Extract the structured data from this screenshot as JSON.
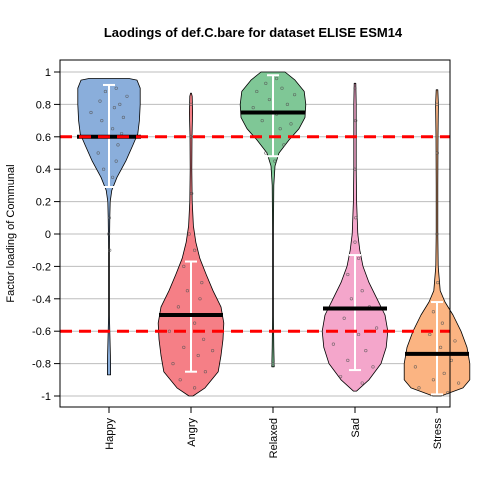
{
  "chart_data": {
    "type": "violin",
    "title": "Laodings of def.C.bare for dataset ELISE ESM14",
    "xlabel": "",
    "ylabel": "Factor loading of Communal",
    "ylim": [
      -1,
      1
    ],
    "yticks": [
      1,
      0.8,
      0.6,
      0.4,
      0.2,
      0,
      -0.2,
      -0.4,
      -0.6,
      -0.8,
      -1
    ],
    "ytick_labels": [
      "1",
      "0.8",
      "0.6",
      "0.4",
      "0.2",
      "0",
      "-0.2",
      "-0.4",
      "-0.6",
      "-0.8",
      "-1"
    ],
    "grid": true,
    "reference_lines": [
      0.6,
      -0.6
    ],
    "reference_color": "#ff0000",
    "categories": [
      "Happy",
      "Angry",
      "Relaxed",
      "Sad",
      "Stress"
    ],
    "series": [
      {
        "category": "Happy",
        "color": "#8aaedb",
        "mean": 0.6,
        "interval": [
          0.29,
          0.92
        ],
        "range": [
          -0.87,
          0.96
        ],
        "density": [
          [
            -0.87,
            0.04
          ],
          [
            -0.8,
            0.04
          ],
          [
            -0.7,
            0.03
          ],
          [
            -0.5,
            0.01
          ],
          [
            -0.1,
            0.01
          ],
          [
            0.1,
            0.02
          ],
          [
            0.2,
            0.03
          ],
          [
            0.27,
            0.07
          ],
          [
            0.35,
            0.2
          ],
          [
            0.45,
            0.42
          ],
          [
            0.55,
            0.6
          ],
          [
            0.62,
            0.72
          ],
          [
            0.7,
            0.76
          ],
          [
            0.8,
            0.78
          ],
          [
            0.9,
            0.78
          ],
          [
            0.95,
            0.7
          ],
          [
            0.96,
            0.5
          ]
        ],
        "points": [
          [
            -0.1,
            0.02
          ],
          [
            0.0,
            -0.01
          ],
          [
            0.1,
            0.01
          ],
          [
            0.35,
            0.1
          ],
          [
            0.4,
            -0.15
          ],
          [
            0.45,
            0.2
          ],
          [
            0.5,
            -0.3
          ],
          [
            0.55,
            0.25
          ],
          [
            0.6,
            -0.4
          ],
          [
            0.62,
            0.35
          ],
          [
            0.65,
            0.1
          ],
          [
            0.7,
            -0.2
          ],
          [
            0.72,
            0.4
          ],
          [
            0.75,
            -0.5
          ],
          [
            0.78,
            0.15
          ],
          [
            0.8,
            0.3
          ],
          [
            0.82,
            -0.25
          ],
          [
            0.85,
            0.5
          ],
          [
            0.88,
            -0.1
          ],
          [
            0.9,
            0.2
          ]
        ]
      },
      {
        "category": "Angry",
        "color": "#f57f86",
        "mean": -0.5,
        "interval": [
          -0.85,
          -0.17
        ],
        "range": [
          -1,
          0.87
        ],
        "density": [
          [
            -1,
            0.05
          ],
          [
            -0.95,
            0.35
          ],
          [
            -0.85,
            0.68
          ],
          [
            -0.75,
            0.75
          ],
          [
            -0.65,
            0.8
          ],
          [
            -0.55,
            0.82
          ],
          [
            -0.45,
            0.75
          ],
          [
            -0.35,
            0.55
          ],
          [
            -0.25,
            0.38
          ],
          [
            -0.15,
            0.22
          ],
          [
            -0.05,
            0.12
          ],
          [
            0.05,
            0.06
          ],
          [
            0.2,
            0.03
          ],
          [
            0.4,
            0.02
          ],
          [
            0.6,
            0.025
          ],
          [
            0.75,
            0.04
          ],
          [
            0.85,
            0.03
          ],
          [
            0.87,
            0.01
          ]
        ],
        "points": [
          [
            -0.95,
            0.1
          ],
          [
            -0.9,
            -0.3
          ],
          [
            -0.85,
            0.4
          ],
          [
            -0.8,
            -0.5
          ],
          [
            -0.75,
            0.2
          ],
          [
            -0.72,
            0.6
          ],
          [
            -0.7,
            -0.2
          ],
          [
            -0.65,
            0.35
          ],
          [
            -0.6,
            -0.6
          ],
          [
            -0.55,
            0.1
          ],
          [
            -0.5,
            0.5
          ],
          [
            -0.45,
            -0.35
          ],
          [
            -0.4,
            0.25
          ],
          [
            -0.35,
            -0.1
          ],
          [
            -0.3,
            0.3
          ],
          [
            -0.2,
            -0.2
          ],
          [
            -0.1,
            0.1
          ],
          [
            0.0,
            -0.05
          ],
          [
            0.25,
            0.02
          ],
          [
            0.6,
            0.01
          ],
          [
            0.8,
            0.0
          ]
        ]
      },
      {
        "category": "Relaxed",
        "color": "#7fc796",
        "mean": 0.75,
        "interval": [
          0.48,
          0.98
        ],
        "range": [
          -0.82,
          1
        ],
        "density": [
          [
            -0.82,
            0.03
          ],
          [
            -0.7,
            0.02
          ],
          [
            -0.5,
            0.01
          ],
          [
            0.0,
            0.01
          ],
          [
            0.3,
            0.02
          ],
          [
            0.42,
            0.05
          ],
          [
            0.5,
            0.15
          ],
          [
            0.58,
            0.4
          ],
          [
            0.65,
            0.65
          ],
          [
            0.72,
            0.8
          ],
          [
            0.8,
            0.82
          ],
          [
            0.88,
            0.78
          ],
          [
            0.95,
            0.55
          ],
          [
            1.0,
            0.3
          ]
        ],
        "points": [
          [
            -0.8,
            0.0
          ],
          [
            0.45,
            0.05
          ],
          [
            0.5,
            -0.2
          ],
          [
            0.55,
            0.3
          ],
          [
            0.6,
            -0.4
          ],
          [
            0.65,
            0.2
          ],
          [
            0.68,
            0.5
          ],
          [
            0.7,
            -0.3
          ],
          [
            0.74,
            0.1
          ],
          [
            0.78,
            -0.55
          ],
          [
            0.8,
            0.4
          ],
          [
            0.83,
            -0.1
          ],
          [
            0.86,
            0.6
          ],
          [
            0.88,
            -0.45
          ],
          [
            0.9,
            0.25
          ],
          [
            0.93,
            -0.2
          ],
          [
            0.96,
            0.1
          ]
        ]
      },
      {
        "category": "Sad",
        "color": "#f4a6cb",
        "mean": -0.46,
        "interval": [
          -0.84,
          -0.13
        ],
        "range": [
          -0.97,
          0.93
        ],
        "density": [
          [
            -0.97,
            0.04
          ],
          [
            -0.9,
            0.35
          ],
          [
            -0.8,
            0.65
          ],
          [
            -0.7,
            0.78
          ],
          [
            -0.6,
            0.82
          ],
          [
            -0.5,
            0.75
          ],
          [
            -0.4,
            0.55
          ],
          [
            -0.3,
            0.35
          ],
          [
            -0.2,
            0.2
          ],
          [
            -0.1,
            0.12
          ],
          [
            0.0,
            0.07
          ],
          [
            0.2,
            0.04
          ],
          [
            0.4,
            0.03
          ],
          [
            0.6,
            0.03
          ],
          [
            0.8,
            0.03
          ],
          [
            0.93,
            0.02
          ]
        ],
        "points": [
          [
            -0.92,
            0.2
          ],
          [
            -0.88,
            -0.4
          ],
          [
            -0.82,
            0.5
          ],
          [
            -0.78,
            -0.2
          ],
          [
            -0.72,
            0.3
          ],
          [
            -0.68,
            -0.6
          ],
          [
            -0.62,
            0.1
          ],
          [
            -0.58,
            0.6
          ],
          [
            -0.52,
            -0.3
          ],
          [
            -0.45,
            0.4
          ],
          [
            -0.4,
            -0.1
          ],
          [
            -0.35,
            0.2
          ],
          [
            -0.25,
            -0.2
          ],
          [
            -0.15,
            0.1
          ],
          [
            -0.05,
            0.0
          ],
          [
            0.1,
            0.02
          ],
          [
            0.4,
            -0.01
          ],
          [
            0.7,
            0.02
          ],
          [
            0.9,
            0.0
          ]
        ]
      },
      {
        "category": "Stress",
        "color": "#fbb482",
        "mean": -0.74,
        "interval": [
          -0.99,
          -0.42
        ],
        "range": [
          -1,
          0.89
        ],
        "density": [
          [
            -1,
            0.1
          ],
          [
            -0.95,
            0.65
          ],
          [
            -0.9,
            0.82
          ],
          [
            -0.8,
            0.82
          ],
          [
            -0.7,
            0.75
          ],
          [
            -0.6,
            0.6
          ],
          [
            -0.5,
            0.4
          ],
          [
            -0.42,
            0.2
          ],
          [
            -0.35,
            0.08
          ],
          [
            -0.2,
            0.03
          ],
          [
            0.0,
            0.02
          ],
          [
            0.3,
            0.02
          ],
          [
            0.6,
            0.025
          ],
          [
            0.8,
            0.035
          ],
          [
            0.89,
            0.02
          ]
        ],
        "points": [
          [
            -0.98,
            0.3
          ],
          [
            -0.95,
            -0.5
          ],
          [
            -0.92,
            0.6
          ],
          [
            -0.9,
            -0.1
          ],
          [
            -0.86,
            0.2
          ],
          [
            -0.82,
            -0.6
          ],
          [
            -0.78,
            0.4
          ],
          [
            -0.74,
            -0.3
          ],
          [
            -0.7,
            0.1
          ],
          [
            -0.66,
            0.5
          ],
          [
            -0.62,
            -0.2
          ],
          [
            -0.55,
            0.15
          ],
          [
            -0.48,
            -0.1
          ],
          [
            -0.3,
            0.02
          ],
          [
            0.0,
            0.0
          ],
          [
            0.5,
            0.01
          ],
          [
            0.8,
            0.0
          ]
        ]
      }
    ]
  }
}
